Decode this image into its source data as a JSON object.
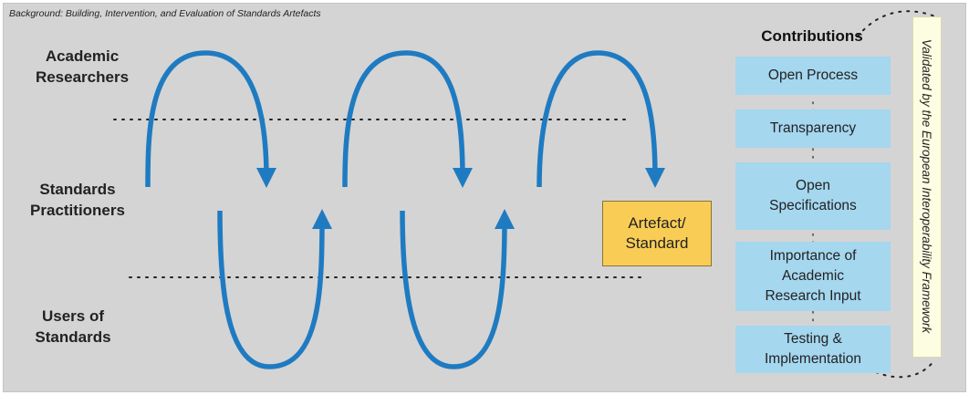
{
  "background_title": "Background: Building, Intervention, and Evaluation of Standards Artefacts",
  "rows": {
    "academic": [
      "Academic",
      "Researchers"
    ],
    "practitioners": [
      "Standards",
      "Practitioners"
    ],
    "users": [
      "Users of",
      "Standards"
    ]
  },
  "artefact": [
    "Artefact/",
    "Standard"
  ],
  "contributions": {
    "title": "Contributions",
    "items": [
      [
        "Open Process"
      ],
      [
        "Transparency"
      ],
      [
        "Open",
        "Specifications"
      ],
      [
        "Importance of",
        "Academic",
        "Research Input"
      ],
      [
        "Testing &",
        "Implementation"
      ]
    ]
  },
  "validation": "Validated by the European Interoperability Framework",
  "colors": {
    "panel": "#d4d4d4",
    "flow_arrow": "#1f7bc1",
    "artefact_fill": "#f9cd55",
    "contribution_fill": "#a5d7ef",
    "validation_fill": "#fdfde2"
  }
}
